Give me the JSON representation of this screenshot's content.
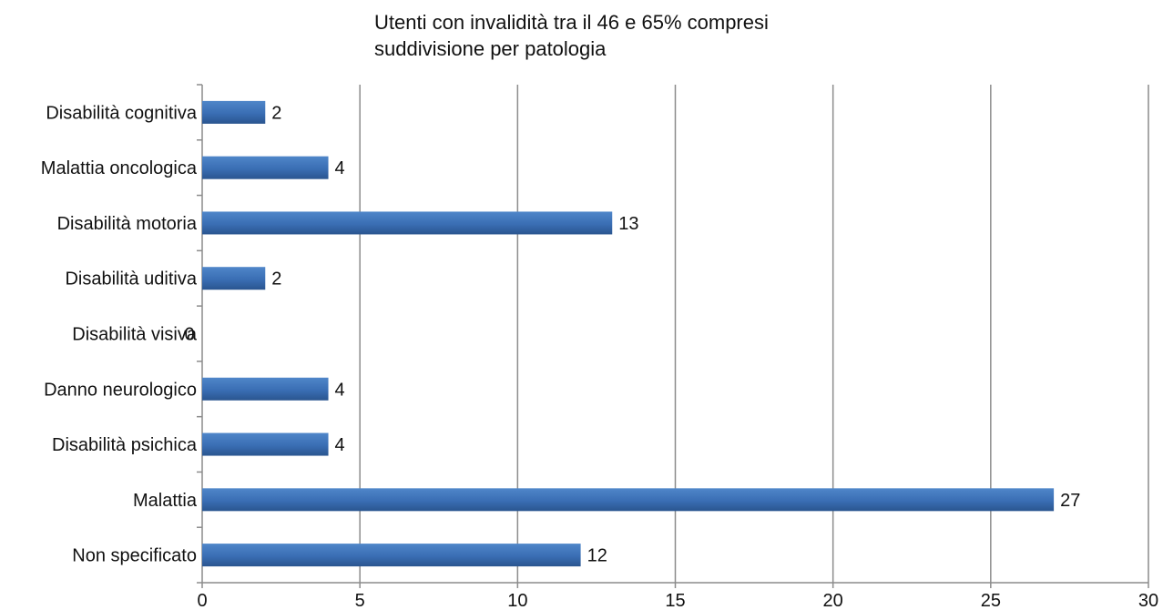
{
  "chart_data": {
    "type": "bar",
    "orientation": "horizontal",
    "title": "Utenti con invalidità tra il 46 e 65% compresi suddivisione per patologia",
    "title_lines": [
      "Utenti con invalidità tra il 46 e 65% compresi",
      "suddivisione per patologia"
    ],
    "categories": [
      "Disabilità cognitiva",
      "Malattia oncologica",
      "Disabilità motoria",
      "Disabilità uditiva",
      "Disabilità visiva",
      "Danno neurologico",
      "Disabilità psichica",
      "Malattia",
      "Non specificato"
    ],
    "values": [
      2,
      4,
      13,
      2,
      0,
      4,
      4,
      27,
      12
    ],
    "data_labels": [
      "2",
      "4",
      "13",
      "2",
      "0",
      "4",
      "4",
      "27",
      "12"
    ],
    "xlim": [
      0,
      30
    ],
    "xticks": [
      0,
      5,
      10,
      15,
      20,
      25,
      30
    ],
    "xtick_labels": [
      "0",
      "5",
      "10",
      "15",
      "20",
      "25",
      "30"
    ],
    "xlabel": "",
    "ylabel": "",
    "grid": "vertical",
    "legend": "none",
    "colors": {
      "bar": "#3a6eb4",
      "bar_dark": "#2a558f",
      "bar_light": "#4f86c9",
      "grid": "#8c8c8c",
      "axis": "#8c8c8c",
      "text": "#111111"
    }
  }
}
